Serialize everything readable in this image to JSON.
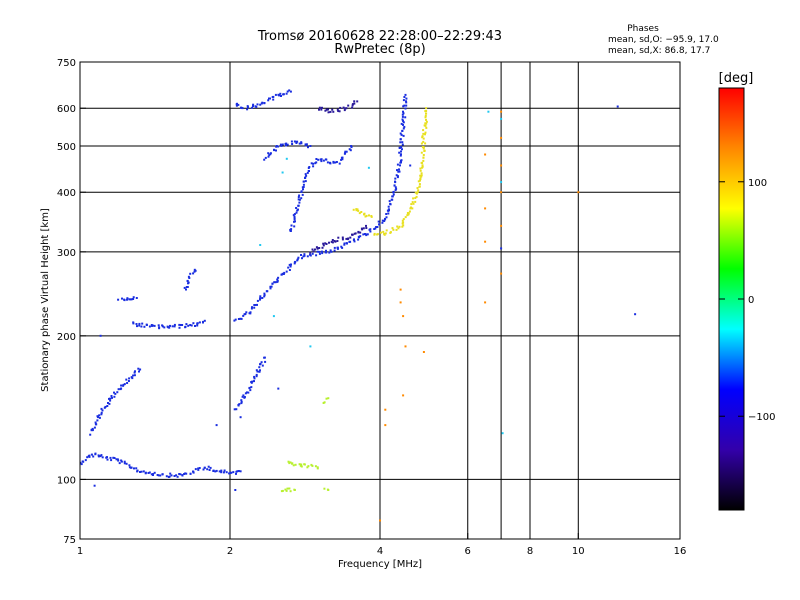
{
  "chart_data": {
    "type": "scatter",
    "title": "Tromsø 20160628 22:28:00–22:29:43",
    "subtitle": "RwPretec (8p)",
    "xlabel": "Frequency [MHz]",
    "ylabel": "Stationary phase Virtual Height [km]",
    "x_scale": "log2",
    "y_scale": "log",
    "xlim": [
      1,
      16
    ],
    "ylim": [
      75,
      750
    ],
    "x_ticks": [
      1,
      2,
      4,
      6,
      8,
      10,
      16
    ],
    "x_tick_labels": [
      "1",
      "2",
      "4",
      "6",
      "8",
      "10",
      "16"
    ],
    "x_grid_lines": [
      2,
      4,
      6,
      7,
      8,
      10
    ],
    "y_ticks": [
      75,
      100,
      200,
      300,
      400,
      500,
      600,
      750
    ],
    "y_tick_labels": [
      "75",
      "100",
      "200",
      "300",
      "400",
      "500",
      "600",
      "750"
    ],
    "y_grid_lines": [
      100,
      200,
      300,
      400,
      500,
      600
    ],
    "grid": true,
    "info": {
      "heading": "Phases",
      "line_o": "mean, sd,O: −95.9, 17.0",
      "line_x": "mean, sd,X:  86.8, 17.7"
    },
    "colorbar": {
      "label": "[deg]",
      "range": [
        -180,
        180
      ],
      "ticks": [
        100,
        0,
        -100
      ],
      "tick_labels": [
        "100",
        "0",
        "−100"
      ],
      "colors": [
        "#ff0000",
        "#ff8800",
        "#ffff00",
        "#00ff00",
        "#00ffff",
        "#0000ff",
        "#3300aa",
        "#000000"
      ]
    },
    "point_colors": {
      "blue": "#1a2ee0",
      "navy": "#2a1a9a",
      "cyan": "#20c8f0",
      "yellow": "#e8e020",
      "lime": "#b8f030",
      "orange": "#ff8a00",
      "red": "#e04020"
    },
    "series": [
      {
        "kind": "line",
        "color": "blue",
        "points": [
          [
            1.0,
            108
          ],
          [
            1.03,
            111
          ],
          [
            1.07,
            113
          ],
          [
            1.12,
            111
          ],
          [
            1.18,
            110
          ],
          [
            1.25,
            107
          ],
          [
            1.32,
            104
          ],
          [
            1.4,
            103
          ],
          [
            1.5,
            102
          ],
          [
            1.6,
            102
          ],
          [
            1.7,
            104
          ],
          [
            1.8,
            106
          ],
          [
            1.9,
            104
          ],
          [
            2.0,
            103
          ],
          [
            2.1,
            104
          ]
        ]
      },
      {
        "kind": "line",
        "color": "blue",
        "points": [
          [
            1.05,
            125
          ],
          [
            1.1,
            138
          ],
          [
            1.17,
            150
          ],
          [
            1.25,
            162
          ],
          [
            1.32,
            170
          ]
        ]
      },
      {
        "kind": "line",
        "color": "blue",
        "points": [
          [
            1.2,
            240
          ],
          [
            1.25,
            238
          ],
          [
            1.3,
            240
          ]
        ]
      },
      {
        "kind": "line",
        "color": "blue",
        "points": [
          [
            1.27,
            212
          ],
          [
            1.4,
            209
          ],
          [
            1.55,
            209
          ],
          [
            1.7,
            211
          ],
          [
            1.78,
            215
          ]
        ]
      },
      {
        "kind": "line",
        "color": "blue",
        "points": [
          [
            1.62,
            250
          ],
          [
            1.66,
            264
          ],
          [
            1.7,
            275
          ]
        ]
      },
      {
        "kind": "line",
        "color": "blue",
        "points": [
          [
            2.05,
            215
          ],
          [
            2.2,
            225
          ],
          [
            2.35,
            245
          ],
          [
            2.55,
            270
          ],
          [
            2.8,
            295
          ],
          [
            3.0,
            298
          ],
          [
            3.2,
            302
          ],
          [
            3.5,
            315
          ],
          [
            3.9,
            335
          ],
          [
            4.15,
            360
          ],
          [
            4.3,
            410
          ],
          [
            4.4,
            470
          ],
          [
            4.45,
            560
          ],
          [
            4.5,
            640
          ]
        ]
      },
      {
        "kind": "line",
        "color": "navy",
        "points": [
          [
            2.9,
            300
          ],
          [
            3.1,
            310
          ],
          [
            3.3,
            318
          ],
          [
            3.55,
            325
          ],
          [
            3.75,
            340
          ]
        ]
      },
      {
        "kind": "line",
        "color": "blue",
        "points": [
          [
            2.65,
            330
          ],
          [
            2.75,
            380
          ],
          [
            2.85,
            440
          ],
          [
            3.0,
            470
          ],
          [
            3.3,
            460
          ],
          [
            3.5,
            500
          ]
        ]
      },
      {
        "kind": "line",
        "color": "blue",
        "points": [
          [
            2.35,
            470
          ],
          [
            2.5,
            500
          ],
          [
            2.7,
            510
          ],
          [
            2.9,
            500
          ]
        ]
      },
      {
        "kind": "line",
        "color": "blue",
        "points": [
          [
            2.05,
            610
          ],
          [
            2.15,
            600
          ],
          [
            2.3,
            610
          ],
          [
            2.5,
            640
          ],
          [
            2.65,
            650
          ]
        ]
      },
      {
        "kind": "line",
        "color": "navy",
        "points": [
          [
            3.0,
            600
          ],
          [
            3.2,
            590
          ],
          [
            3.45,
            600
          ],
          [
            3.6,
            620
          ]
        ]
      },
      {
        "kind": "line",
        "color": "yellow",
        "points": [
          [
            3.9,
            325
          ],
          [
            4.15,
            330
          ],
          [
            4.4,
            340
          ],
          [
            4.6,
            365
          ],
          [
            4.75,
            400
          ],
          [
            4.85,
            450
          ],
          [
            4.9,
            520
          ],
          [
            4.95,
            600
          ]
        ]
      },
      {
        "kind": "line",
        "color": "yellow",
        "points": [
          [
            3.55,
            370
          ],
          [
            3.7,
            360
          ],
          [
            3.85,
            355
          ]
        ]
      },
      {
        "kind": "line",
        "color": "lime",
        "points": [
          [
            2.6,
            108
          ],
          [
            2.8,
            107
          ],
          [
            3.0,
            106
          ]
        ]
      },
      {
        "kind": "line",
        "color": "lime",
        "points": [
          [
            2.55,
            95
          ],
          [
            2.7,
            95
          ]
        ]
      },
      {
        "kind": "line",
        "color": "lime",
        "points": [
          [
            3.1,
            95
          ],
          [
            3.15,
            95
          ]
        ]
      },
      {
        "kind": "line",
        "color": "lime",
        "points": [
          [
            3.1,
            145
          ],
          [
            3.15,
            148
          ]
        ]
      },
      {
        "kind": "line",
        "color": "blue",
        "points": [
          [
            2.05,
            140
          ],
          [
            2.15,
            150
          ],
          [
            2.25,
            165
          ],
          [
            2.35,
            180
          ]
        ]
      },
      {
        "kind": "scatter",
        "color": "orange",
        "points": [
          [
            4.4,
            250
          ],
          [
            4.4,
            235
          ],
          [
            4.45,
            220
          ],
          [
            4.5,
            190
          ],
          [
            4.45,
            150
          ],
          [
            4.9,
            185
          ],
          [
            6.5,
            480
          ],
          [
            6.5,
            370
          ],
          [
            6.5,
            315
          ],
          [
            6.5,
            235
          ],
          [
            7.0,
            590
          ],
          [
            7.0,
            520
          ],
          [
            7.0,
            455
          ],
          [
            7.0,
            400
          ],
          [
            7.0,
            340
          ],
          [
            7.0,
            270
          ],
          [
            10.0,
            400
          ],
          [
            4.1,
            130
          ],
          [
            4.1,
            140
          ],
          [
            4.0,
            82
          ]
        ]
      },
      {
        "kind": "scatter",
        "color": "cyan",
        "points": [
          [
            6.6,
            590
          ],
          [
            7.0,
            570
          ],
          [
            7.0,
            420
          ],
          [
            7.05,
            125
          ],
          [
            3.8,
            450
          ],
          [
            2.55,
            440
          ],
          [
            2.6,
            470
          ],
          [
            2.3,
            310
          ],
          [
            2.45,
            220
          ],
          [
            2.9,
            190
          ]
        ]
      },
      {
        "kind": "scatter",
        "color": "blue",
        "points": [
          [
            12.0,
            605
          ],
          [
            13.0,
            222
          ],
          [
            7.0,
            305
          ],
          [
            4.6,
            455
          ],
          [
            1.07,
            97
          ],
          [
            1.1,
            200
          ],
          [
            1.88,
            130
          ],
          [
            2.05,
            95
          ],
          [
            2.5,
            155
          ],
          [
            2.1,
            135
          ]
        ]
      }
    ]
  }
}
